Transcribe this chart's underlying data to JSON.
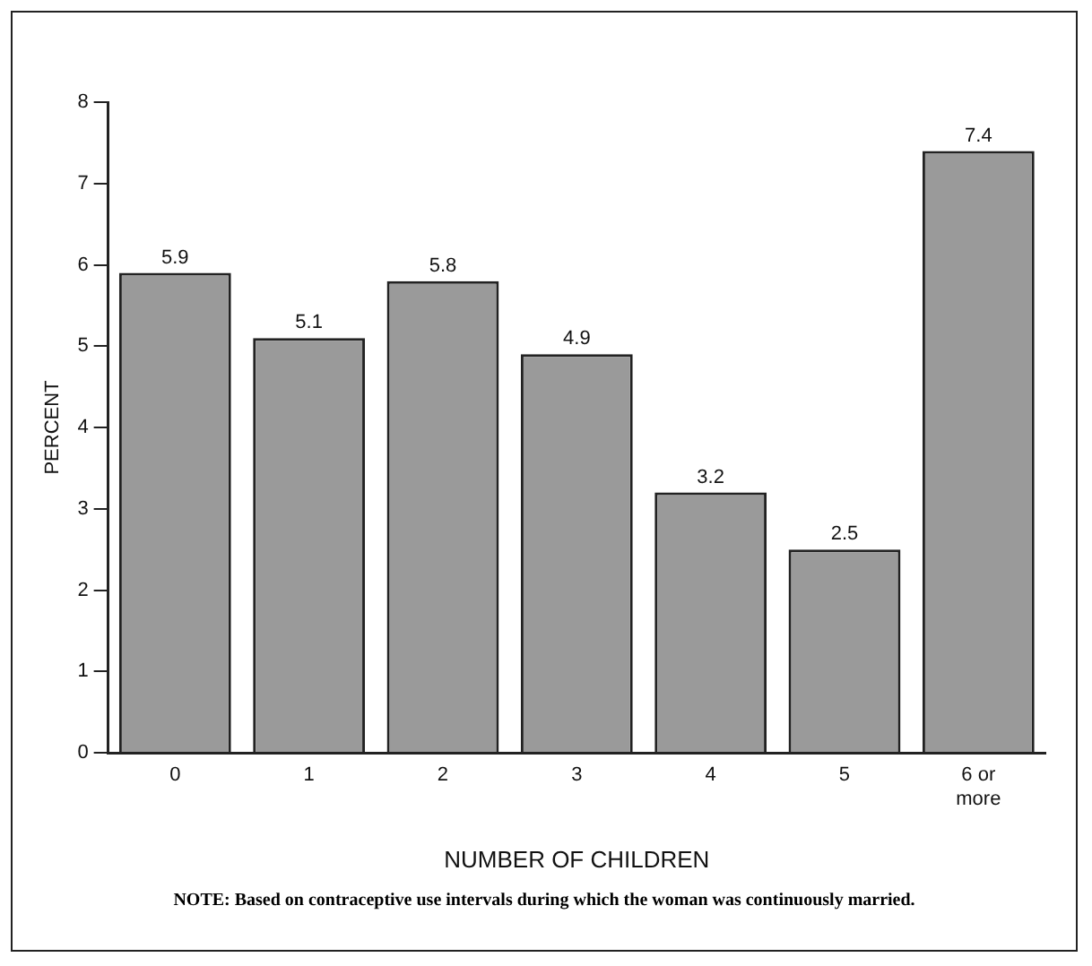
{
  "chart_data": {
    "type": "bar",
    "xlabel": "NUMBER OF CHILDREN",
    "ylabel": "PERCENT",
    "categories": [
      "0",
      "1",
      "2",
      "3",
      "4",
      "5",
      "6 or more"
    ],
    "values": [
      5.9,
      5.1,
      5.8,
      4.9,
      3.2,
      2.5,
      7.4
    ],
    "color": "#9a9a9a",
    "ylim": [
      0,
      8
    ],
    "yticks": [
      0,
      1,
      2,
      3,
      4,
      5,
      6,
      7,
      8
    ],
    "grid": false,
    "legend": false,
    "data_labels": true,
    "annotations": [
      "NOTE: Based on contraceptive use intervals during which the woman was continuously married."
    ]
  }
}
